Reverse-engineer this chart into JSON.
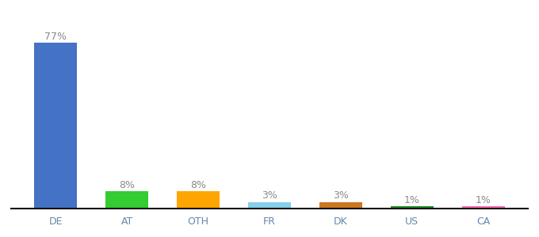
{
  "categories": [
    "DE",
    "AT",
    "OTH",
    "FR",
    "DK",
    "US",
    "CA"
  ],
  "values": [
    77,
    8,
    8,
    3,
    3,
    1,
    1
  ],
  "bar_colors": [
    "#4472c4",
    "#33cc33",
    "#ffa500",
    "#87ceeb",
    "#cc7722",
    "#228b22",
    "#ff69b4"
  ],
  "background_color": "#ffffff",
  "label_fontsize": 9,
  "tick_fontsize": 9,
  "label_color": "#888888",
  "tick_color": "#6688aa",
  "bottom_line_color": "#111111"
}
